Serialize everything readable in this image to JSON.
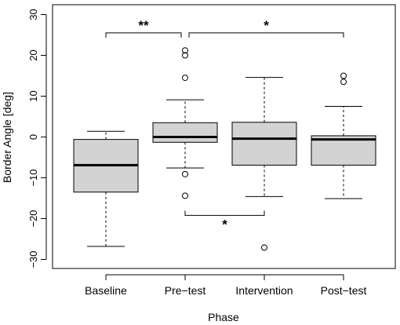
{
  "chart_data": {
    "type": "boxplot",
    "xlabel": "Phase",
    "ylabel": "Border Angle [deg]",
    "ylim": [
      -32,
      32
    ],
    "yticks": [
      -30,
      -20,
      -10,
      0,
      10,
      20,
      30
    ],
    "ytick_labels": [
      "−30",
      "−20",
      "−10",
      "0",
      "10",
      "20",
      "30"
    ],
    "grid": false,
    "box_color": "#d3d3d3",
    "categories": [
      "Baseline",
      "Pre−test",
      "Intervention",
      "Post−test"
    ],
    "boxes": [
      {
        "category": "Baseline",
        "whisker_low": -26.8,
        "q1": -13.5,
        "median": -6.9,
        "q3": -0.6,
        "whisker_high": 1.4,
        "outliers": []
      },
      {
        "category": "Pre−test",
        "whisker_low": -7.6,
        "q1": -1.3,
        "median": 0.0,
        "q3": 3.5,
        "whisker_high": 9.1,
        "outliers": [
          -14.4,
          -9.1,
          14.5,
          20.0,
          21.2
        ]
      },
      {
        "category": "Intervention",
        "whisker_low": -14.6,
        "q1": -6.9,
        "median": -0.4,
        "q3": 3.6,
        "whisker_high": 14.6,
        "outliers": [
          -27.1
        ]
      },
      {
        "category": "Post−test",
        "whisker_low": -15.1,
        "q1": -6.9,
        "median": -0.6,
        "q3": 0.3,
        "whisker_high": 7.5,
        "outliers": [
          13.5,
          15.0
        ]
      }
    ],
    "annotations": [
      {
        "from": 0,
        "to": 1,
        "y": 25.5,
        "position": "above",
        "label": "**"
      },
      {
        "from": 1,
        "to": 3,
        "y": 25.5,
        "position": "above",
        "label": "*"
      },
      {
        "from": 1,
        "to": 2,
        "y": -19.2,
        "position": "below",
        "label": "*"
      }
    ]
  }
}
